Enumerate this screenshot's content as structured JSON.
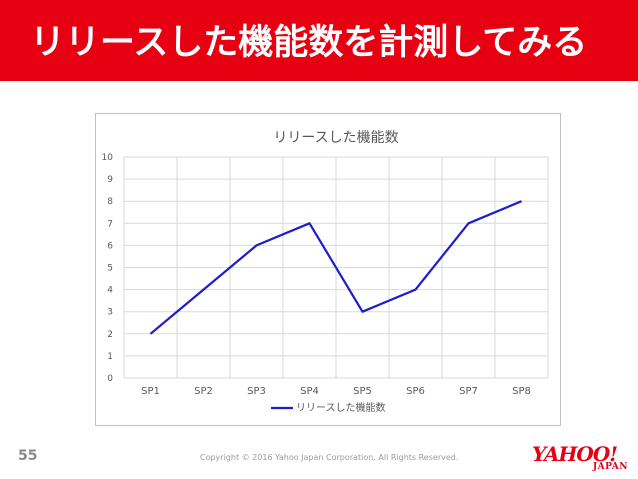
{
  "header": {
    "title": "リリースした機能数を計測してみる"
  },
  "footer": {
    "page_number": "55",
    "copyright": "Copyright © 2016 Yahoo Japan Corporation. All Rights Reserved.",
    "logo_text": "YAHOO!",
    "logo_sub": "JAPAN"
  },
  "colors": {
    "header_bg": "#e60012",
    "series_line": "#1c1cd0",
    "grid": "#d9d9d9"
  },
  "chart_data": {
    "type": "line",
    "title": "リリースした機能数",
    "categories": [
      "SP1",
      "SP2",
      "SP3",
      "SP4",
      "SP5",
      "SP6",
      "SP7",
      "SP8"
    ],
    "series": [
      {
        "name": "リリースした機能数",
        "values": [
          2,
          4,
          6,
          7,
          3,
          4,
          7,
          8
        ]
      }
    ],
    "y_ticks": [
      "0",
      "1",
      "2",
      "3",
      "4",
      "5",
      "6",
      "7",
      "8",
      "9",
      "10"
    ],
    "ylim": [
      0,
      10
    ],
    "grid": true,
    "legend": "bottom"
  }
}
